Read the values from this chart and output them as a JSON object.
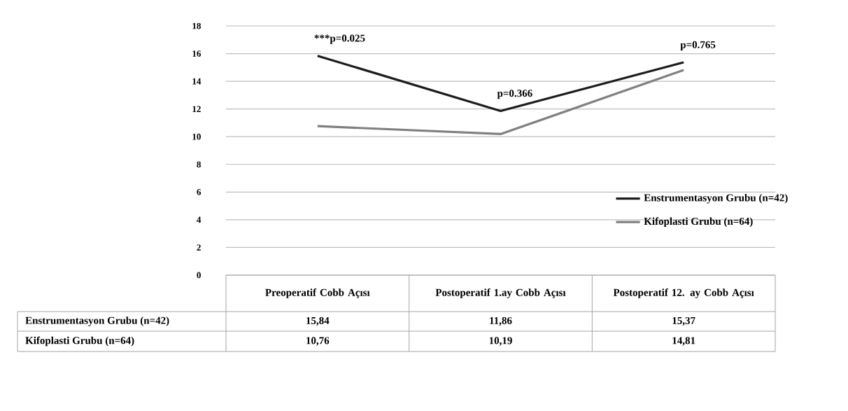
{
  "chart_data": {
    "type": "line",
    "categories": [
      "Preoperatif Cobb Açısı",
      "Postoperatif 1.ay Cobb Açısı",
      "Postoperatif 12. ay Cobb Açısı"
    ],
    "series": [
      {
        "name": "Enstrumentasyon Grubu (n=42)",
        "color": "#1c1c1c",
        "values": [
          15.84,
          11.86,
          15.37
        ],
        "value_labels": [
          "15,84",
          "11,86",
          "15,37"
        ]
      },
      {
        "name": "Kifoplasti Grubu (n=64)",
        "color": "#808080",
        "values": [
          10.76,
          10.19,
          14.81
        ],
        "value_labels": [
          "10,76",
          "10,19",
          "14,81"
        ]
      }
    ],
    "ylim": [
      0,
      18
    ],
    "yticks": [
      0,
      2,
      4,
      6,
      8,
      10,
      12,
      14,
      16,
      18
    ],
    "grid": "y",
    "legend": "right",
    "marker": "none",
    "line_style": "solid",
    "annotations": [
      "***p=0.025",
      "p=0.366",
      "p=0.765"
    ]
  }
}
